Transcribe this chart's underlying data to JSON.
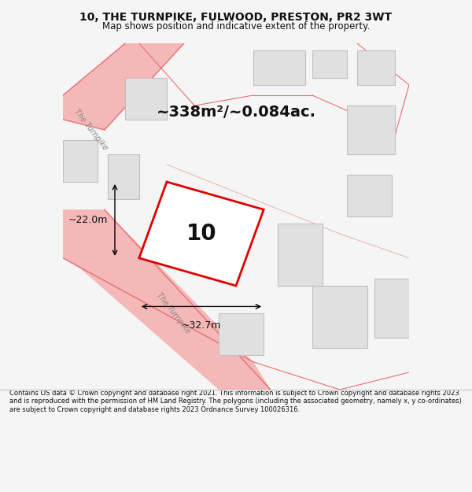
{
  "title_line1": "10, THE TURNPIKE, FULWOOD, PRESTON, PR2 3WT",
  "title_line2": "Map shows position and indicative extent of the property.",
  "area_label": "~338m²/~0.084ac.",
  "property_number": "10",
  "dim_horizontal": "~32.7m",
  "dim_vertical": "~22.0m",
  "footer_text": "Contains OS data © Crown copyright and database right 2021. This information is subject to Crown copyright and database rights 2023 and is reproduced with the permission of HM Land Registry. The polygons (including the associated geometry, namely x, y co-ordinates) are subject to Crown copyright and database rights 2023 Ordnance Survey 100026316.",
  "bg_color": "#f5f5f5",
  "map_bg": "#ffffff",
  "road_color": "#f4b8b8",
  "road_line_color": "#e87070",
  "building_fill": "#e0e0e0",
  "building_edge": "#c0c0c0",
  "property_fill": "#ffffff",
  "property_edge": "#e00000",
  "text_color": "#111111"
}
